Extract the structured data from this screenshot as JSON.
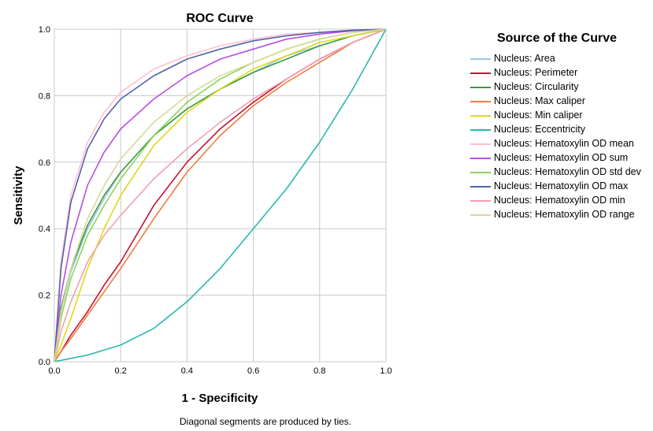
{
  "chart_data": {
    "type": "line",
    "title": "ROC Curve",
    "xlabel": "1 - Specificity",
    "ylabel": "Sensitivity",
    "xlim": [
      0,
      1
    ],
    "ylim": [
      0,
      1
    ],
    "x_ticks": [
      "0.0",
      "0.2",
      "0.4",
      "0.6",
      "0.8",
      "1.0"
    ],
    "y_ticks": [
      "0.0",
      "0.2",
      "0.4",
      "0.6",
      "0.8",
      "1.0"
    ],
    "grid": true,
    "legend_title": "Source of the Curve",
    "legend_position": "right",
    "footnote": "Diagonal segments are produced by ties.",
    "series": [
      {
        "name": "Nucleus: Area",
        "color": "#9ec8e8",
        "x": [
          0,
          0.02,
          0.05,
          0.1,
          0.15,
          0.2,
          0.3,
          0.4,
          0.5,
          0.6,
          0.7,
          0.8,
          0.9,
          1.0
        ],
        "y": [
          0,
          0.15,
          0.27,
          0.4,
          0.49,
          0.57,
          0.68,
          0.76,
          0.82,
          0.87,
          0.92,
          0.95,
          0.98,
          1.0
        ]
      },
      {
        "name": "Nucleus: Perimeter",
        "color": "#c8102e",
        "x": [
          0,
          0.02,
          0.05,
          0.1,
          0.15,
          0.2,
          0.3,
          0.4,
          0.5,
          0.6,
          0.7,
          0.8,
          0.9,
          1.0
        ],
        "y": [
          0,
          0.03,
          0.08,
          0.15,
          0.23,
          0.3,
          0.47,
          0.6,
          0.7,
          0.78,
          0.85,
          0.91,
          0.96,
          1.0
        ]
      },
      {
        "name": "Nucleus: Circularity",
        "color": "#3a9a3a",
        "x": [
          0,
          0.02,
          0.05,
          0.1,
          0.15,
          0.2,
          0.3,
          0.4,
          0.5,
          0.6,
          0.7,
          0.8,
          0.9,
          1.0
        ],
        "y": [
          0,
          0.16,
          0.28,
          0.41,
          0.5,
          0.57,
          0.68,
          0.76,
          0.82,
          0.87,
          0.91,
          0.95,
          0.98,
          1.0
        ]
      },
      {
        "name": "Nucleus: Max caliper",
        "color": "#f07b3f",
        "x": [
          0,
          0.02,
          0.05,
          0.1,
          0.15,
          0.2,
          0.3,
          0.4,
          0.5,
          0.6,
          0.7,
          0.8,
          0.9,
          1.0
        ],
        "y": [
          0,
          0.03,
          0.07,
          0.14,
          0.21,
          0.28,
          0.43,
          0.57,
          0.68,
          0.77,
          0.84,
          0.9,
          0.96,
          1.0
        ]
      },
      {
        "name": "Nucleus: Min caliper",
        "color": "#e0d81e",
        "x": [
          0,
          0.02,
          0.05,
          0.1,
          0.15,
          0.2,
          0.3,
          0.4,
          0.5,
          0.6,
          0.7,
          0.8,
          0.9,
          1.0
        ],
        "y": [
          0,
          0.05,
          0.13,
          0.28,
          0.4,
          0.5,
          0.65,
          0.75,
          0.82,
          0.88,
          0.92,
          0.96,
          0.98,
          1.0
        ]
      },
      {
        "name": "Nucleus: Eccentricity",
        "color": "#2ab8b0",
        "x": [
          0,
          0.05,
          0.1,
          0.2,
          0.3,
          0.4,
          0.5,
          0.6,
          0.7,
          0.8,
          0.9,
          1.0
        ],
        "y": [
          0,
          0.01,
          0.02,
          0.05,
          0.1,
          0.18,
          0.28,
          0.4,
          0.52,
          0.66,
          0.82,
          1.0
        ]
      },
      {
        "name": "Nucleus: Hematoxylin OD mean",
        "color": "#ffc0d0",
        "x": [
          0,
          0.02,
          0.05,
          0.1,
          0.15,
          0.2,
          0.3,
          0.4,
          0.5,
          0.6,
          0.7,
          0.8,
          0.9,
          1.0
        ],
        "y": [
          0,
          0.3,
          0.5,
          0.66,
          0.75,
          0.81,
          0.88,
          0.92,
          0.95,
          0.97,
          0.985,
          0.99,
          0.997,
          1.0
        ]
      },
      {
        "name": "Nucleus: Hematoxylin OD sum",
        "color": "#b84ee0",
        "x": [
          0,
          0.02,
          0.05,
          0.1,
          0.15,
          0.2,
          0.3,
          0.4,
          0.5,
          0.6,
          0.7,
          0.8,
          0.9,
          1.0
        ],
        "y": [
          0,
          0.2,
          0.36,
          0.53,
          0.63,
          0.7,
          0.79,
          0.86,
          0.91,
          0.94,
          0.97,
          0.985,
          0.995,
          1.0
        ]
      },
      {
        "name": "Nucleus: Hematoxylin OD std dev",
        "color": "#8cd45a",
        "x": [
          0,
          0.02,
          0.05,
          0.1,
          0.15,
          0.2,
          0.3,
          0.4,
          0.5,
          0.6,
          0.7,
          0.8,
          0.9,
          1.0
        ],
        "y": [
          0,
          0.13,
          0.25,
          0.38,
          0.47,
          0.55,
          0.68,
          0.78,
          0.85,
          0.9,
          0.94,
          0.97,
          0.99,
          1.0
        ]
      },
      {
        "name": "Nucleus: Hematoxylin OD max",
        "color": "#5262a8",
        "x": [
          0,
          0.02,
          0.05,
          0.1,
          0.15,
          0.2,
          0.3,
          0.4,
          0.5,
          0.6,
          0.7,
          0.8,
          0.9,
          1.0
        ],
        "y": [
          0,
          0.28,
          0.48,
          0.64,
          0.73,
          0.79,
          0.86,
          0.91,
          0.94,
          0.965,
          0.98,
          0.99,
          0.997,
          1.0
        ]
      },
      {
        "name": "Nucleus: Hematoxylin OD min",
        "color": "#f0a0b0",
        "x": [
          0,
          0.02,
          0.05,
          0.1,
          0.15,
          0.2,
          0.3,
          0.4,
          0.5,
          0.6,
          0.7,
          0.8,
          0.9,
          1.0
        ],
        "y": [
          0,
          0.09,
          0.18,
          0.3,
          0.38,
          0.44,
          0.55,
          0.64,
          0.72,
          0.79,
          0.85,
          0.91,
          0.96,
          1.0
        ]
      },
      {
        "name": "Nucleus: Hematoxylin OD range",
        "color": "#d9d99a",
        "x": [
          0,
          0.02,
          0.05,
          0.1,
          0.15,
          0.2,
          0.3,
          0.4,
          0.5,
          0.6,
          0.7,
          0.8,
          0.9,
          1.0
        ],
        "y": [
          0,
          0.15,
          0.28,
          0.43,
          0.53,
          0.61,
          0.72,
          0.8,
          0.86,
          0.9,
          0.94,
          0.97,
          0.99,
          1.0
        ]
      }
    ]
  }
}
